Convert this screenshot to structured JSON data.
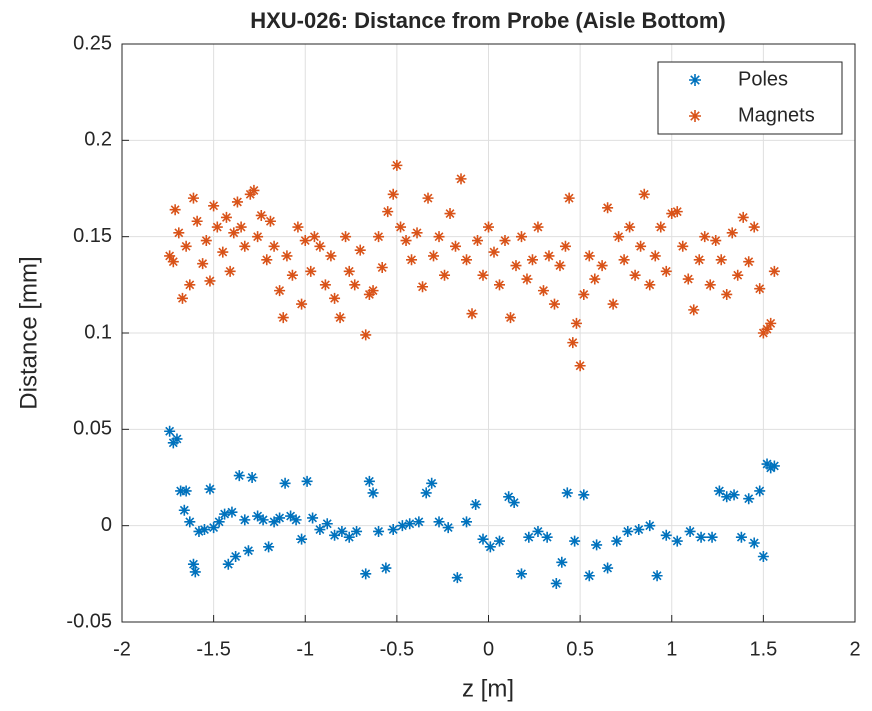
{
  "chart_data": {
    "type": "scatter",
    "title": "HXU-026: Distance from Probe (Aisle Bottom)",
    "xlabel": "z [m]",
    "ylabel": "Distance [mm]",
    "xlim": [
      -2,
      2
    ],
    "xticks": [
      -2,
      -1.5,
      -1,
      -0.5,
      0,
      0.5,
      1,
      1.5,
      2
    ],
    "ylim": [
      -0.05,
      0.25
    ],
    "yticks": [
      -0.05,
      0,
      0.05,
      0.1,
      0.15,
      0.2,
      0.25
    ],
    "grid": true,
    "legend": "top-right",
    "marker": "asterisk",
    "series": [
      {
        "name": "Poles",
        "color": "#0072BD",
        "x": [
          -1.74,
          -1.72,
          -1.7,
          -1.68,
          -1.66,
          -1.65,
          -1.63,
          -1.61,
          -1.6,
          -1.58,
          -1.55,
          -1.52,
          -1.5,
          -1.47,
          -1.44,
          -1.42,
          -1.4,
          -1.38,
          -1.36,
          -1.33,
          -1.31,
          -1.29,
          -1.26,
          -1.23,
          -1.2,
          -1.17,
          -1.14,
          -1.11,
          -1.08,
          -1.05,
          -1.02,
          -0.99,
          -0.96,
          -0.92,
          -0.88,
          -0.84,
          -0.8,
          -0.76,
          -0.72,
          -0.67,
          -0.65,
          -0.63,
          -0.6,
          -0.56,
          -0.52,
          -0.47,
          -0.43,
          -0.38,
          -0.34,
          -0.31,
          -0.27,
          -0.22,
          -0.17,
          -0.12,
          -0.07,
          -0.03,
          0.01,
          0.06,
          0.11,
          0.14,
          0.18,
          0.22,
          0.27,
          0.32,
          0.37,
          0.4,
          0.43,
          0.47,
          0.52,
          0.55,
          0.59,
          0.65,
          0.7,
          0.76,
          0.82,
          0.88,
          0.92,
          0.97,
          1.03,
          1.1,
          1.16,
          1.22,
          1.26,
          1.3,
          1.34,
          1.38,
          1.42,
          1.45,
          1.48,
          1.5,
          1.52,
          1.54,
          1.56
        ],
        "values": [
          0.049,
          0.043,
          0.045,
          0.018,
          0.008,
          0.018,
          0.002,
          -0.02,
          -0.024,
          -0.003,
          -0.002,
          0.019,
          -0.001,
          0.002,
          0.006,
          -0.02,
          0.007,
          -0.016,
          0.026,
          0.003,
          -0.013,
          0.025,
          0.005,
          0.003,
          -0.011,
          0.002,
          0.004,
          0.022,
          0.005,
          0.003,
          -0.007,
          0.023,
          0.004,
          -0.002,
          0.001,
          -0.005,
          -0.003,
          -0.006,
          -0.003,
          -0.025,
          0.023,
          0.017,
          -0.003,
          -0.022,
          -0.002,
          0.0,
          0.001,
          0.002,
          0.017,
          0.022,
          0.002,
          -0.001,
          -0.027,
          0.002,
          0.011,
          -0.007,
          -0.011,
          -0.008,
          0.015,
          0.012,
          -0.025,
          -0.006,
          -0.003,
          -0.006,
          -0.03,
          -0.019,
          0.017,
          -0.008,
          0.016,
          -0.026,
          -0.01,
          -0.022,
          -0.008,
          -0.003,
          -0.002,
          0.0,
          -0.026,
          -0.005,
          -0.008,
          -0.003,
          -0.006,
          -0.006,
          0.018,
          0.015,
          0.016,
          -0.006,
          0.014,
          -0.009,
          0.018,
          -0.016,
          0.032,
          0.03,
          0.031
        ]
      },
      {
        "name": "Magnets",
        "color": "#D95319",
        "x": [
          -1.74,
          -1.72,
          -1.71,
          -1.69,
          -1.67,
          -1.65,
          -1.63,
          -1.61,
          -1.59,
          -1.56,
          -1.54,
          -1.52,
          -1.5,
          -1.48,
          -1.45,
          -1.43,
          -1.41,
          -1.39,
          -1.37,
          -1.35,
          -1.33,
          -1.3,
          -1.28,
          -1.26,
          -1.24,
          -1.21,
          -1.19,
          -1.17,
          -1.14,
          -1.12,
          -1.1,
          -1.07,
          -1.04,
          -1.02,
          -1.0,
          -0.97,
          -0.95,
          -0.92,
          -0.89,
          -0.86,
          -0.84,
          -0.81,
          -0.78,
          -0.76,
          -0.73,
          -0.7,
          -0.67,
          -0.65,
          -0.63,
          -0.6,
          -0.58,
          -0.55,
          -0.52,
          -0.5,
          -0.48,
          -0.45,
          -0.42,
          -0.39,
          -0.36,
          -0.33,
          -0.3,
          -0.27,
          -0.24,
          -0.21,
          -0.18,
          -0.15,
          -0.12,
          -0.09,
          -0.06,
          -0.03,
          0.0,
          0.03,
          0.06,
          0.09,
          0.12,
          0.15,
          0.18,
          0.21,
          0.24,
          0.27,
          0.3,
          0.33,
          0.36,
          0.39,
          0.42,
          0.44,
          0.46,
          0.48,
          0.5,
          0.52,
          0.55,
          0.58,
          0.62,
          0.65,
          0.68,
          0.71,
          0.74,
          0.77,
          0.8,
          0.83,
          0.85,
          0.88,
          0.91,
          0.94,
          0.97,
          1.0,
          1.03,
          1.06,
          1.09,
          1.12,
          1.15,
          1.18,
          1.21,
          1.24,
          1.27,
          1.3,
          1.33,
          1.36,
          1.39,
          1.42,
          1.45,
          1.48,
          1.5,
          1.52,
          1.54,
          1.56
        ],
        "values": [
          0.14,
          0.137,
          0.164,
          0.152,
          0.118,
          0.145,
          0.125,
          0.17,
          0.158,
          0.136,
          0.148,
          0.127,
          0.166,
          0.155,
          0.142,
          0.16,
          0.132,
          0.152,
          0.168,
          0.155,
          0.145,
          0.172,
          0.174,
          0.15,
          0.161,
          0.138,
          0.158,
          0.145,
          0.122,
          0.108,
          0.14,
          0.13,
          0.155,
          0.115,
          0.148,
          0.132,
          0.15,
          0.145,
          0.125,
          0.14,
          0.118,
          0.108,
          0.15,
          0.132,
          0.125,
          0.143,
          0.099,
          0.12,
          0.122,
          0.15,
          0.134,
          0.163,
          0.172,
          0.187,
          0.155,
          0.148,
          0.138,
          0.152,
          0.124,
          0.17,
          0.14,
          0.15,
          0.13,
          0.162,
          0.145,
          0.18,
          0.138,
          0.11,
          0.148,
          0.13,
          0.155,
          0.142,
          0.125,
          0.148,
          0.108,
          0.135,
          0.15,
          0.128,
          0.138,
          0.155,
          0.122,
          0.14,
          0.115,
          0.135,
          0.145,
          0.17,
          0.095,
          0.105,
          0.083,
          0.12,
          0.14,
          0.128,
          0.135,
          0.165,
          0.115,
          0.15,
          0.138,
          0.155,
          0.13,
          0.145,
          0.172,
          0.125,
          0.14,
          0.155,
          0.132,
          0.162,
          0.163,
          0.145,
          0.128,
          0.112,
          0.138,
          0.15,
          0.125,
          0.148,
          0.138,
          0.12,
          0.152,
          0.13,
          0.16,
          0.137,
          0.155,
          0.123,
          0.1,
          0.102,
          0.105,
          0.132
        ]
      }
    ]
  }
}
